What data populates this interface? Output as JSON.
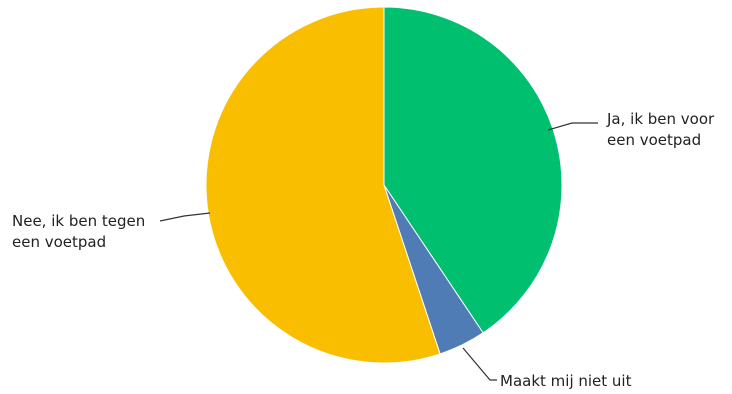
{
  "chart_data": {
    "type": "pie",
    "start_angle_deg": 0,
    "direction": "clockwise",
    "slices": [
      {
        "label_lines": [
          "Ja, ik ben voor",
          "een voetpad"
        ],
        "value": 40.6,
        "color": "#00BF6F"
      },
      {
        "label_lines": [
          "Maakt mij niet uit"
        ],
        "value": 4.3,
        "color": "#507CB6"
      },
      {
        "label_lines": [
          "Nee, ik ben tegen",
          "een voetpad"
        ],
        "value": 55.1,
        "color": "#F9BE00"
      }
    ]
  }
}
